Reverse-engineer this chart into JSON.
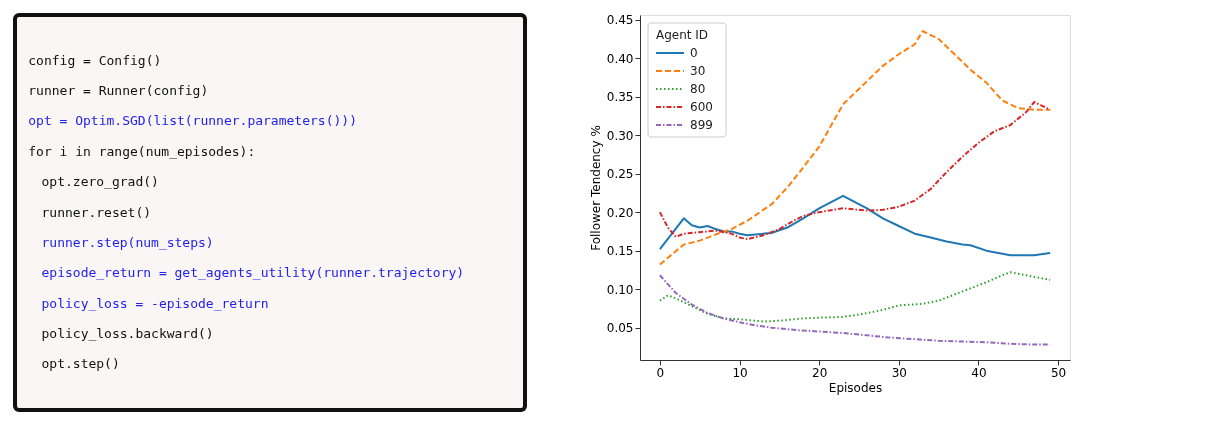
{
  "chart_data": [
    {
      "type": "other",
      "annotations": [
        "config = Config()",
        "runner = Runner(config)",
        "opt = Optim.SGD(list(runner.parameters()))",
        "for i in range(num_episodes):",
        "  opt.zero_grad()",
        "  runner.reset()",
        "  runner.step(num_steps)",
        "  episode_return = get_agents_utility(runner.trajectory)",
        "  policy_loss = -episode_return",
        "  policy_loss.backward()",
        "  opt.step()"
      ],
      "colors": [
        "#111111",
        "#111111",
        "#2222ee",
        "#111111",
        "#111111",
        "#111111",
        "#2222ee",
        "#2222ee",
        "#2222ee",
        "#111111",
        "#111111"
      ]
    },
    {
      "type": "line",
      "xlabel": "Episodes",
      "ylabel": "Follower Tendency %",
      "legend_title": "Agent ID",
      "legend": "top left",
      "grid": false,
      "xlim": [
        -2.5,
        51.5
      ],
      "ylim": [
        0.008,
        0.456
      ],
      "xticks": [
        0,
        10,
        20,
        30,
        40,
        50
      ],
      "yticks": [
        {
          "value": 0.05,
          "label": "0.05"
        },
        {
          "value": 0.1,
          "label": "0.10"
        },
        {
          "value": 0.15,
          "label": "0.15"
        },
        {
          "value": 0.2,
          "label": "0.20"
        },
        {
          "value": 0.25,
          "label": "0.25"
        },
        {
          "value": 0.3,
          "label": "0.30"
        },
        {
          "value": 0.35,
          "label": "0.35"
        },
        {
          "value": 0.4,
          "label": "0.40"
        },
        {
          "value": 0.45,
          "label": "0.45"
        }
      ],
      "series": [
        {
          "name": "0",
          "color": "#1f77b4",
          "line_style": "solid",
          "x": [
            0,
            3,
            4,
            5,
            6,
            7,
            8,
            9,
            10,
            11,
            12,
            14,
            16,
            18,
            20,
            23,
            26,
            28,
            30,
            32,
            34,
            36,
            38,
            39,
            41,
            43,
            44,
            47,
            49
          ],
          "values": [
            0.152,
            0.192,
            0.183,
            0.18,
            0.182,
            0.178,
            0.175,
            0.175,
            0.172,
            0.17,
            0.171,
            0.173,
            0.18,
            0.192,
            0.205,
            0.221,
            0.205,
            0.192,
            0.182,
            0.172,
            0.167,
            0.162,
            0.158,
            0.157,
            0.15,
            0.146,
            0.144,
            0.144,
            0.147
          ]
        },
        {
          "name": "30",
          "color": "#ff7f0e",
          "line_style": "dashed",
          "x": [
            0,
            3,
            5,
            7,
            9,
            11,
            14,
            16,
            18,
            20,
            23,
            25,
            28,
            30,
            32,
            33,
            35,
            37,
            39,
            41,
            43,
            45,
            47,
            49
          ],
          "values": [
            0.132,
            0.158,
            0.163,
            0.171,
            0.178,
            0.189,
            0.21,
            0.232,
            0.258,
            0.285,
            0.34,
            0.36,
            0.39,
            0.405,
            0.418,
            0.435,
            0.425,
            0.405,
            0.385,
            0.368,
            0.345,
            0.335,
            0.333,
            0.333
          ]
        },
        {
          "name": "80",
          "color": "#2ca02c",
          "line_style": "dotted",
          "x": [
            0,
            1,
            2,
            4,
            6,
            8,
            10,
            13,
            15,
            18,
            20,
            23,
            25,
            28,
            30,
            33,
            35,
            37,
            39,
            41,
            43,
            44,
            46,
            49
          ],
          "values": [
            0.085,
            0.092,
            0.088,
            0.078,
            0.068,
            0.062,
            0.061,
            0.058,
            0.059,
            0.062,
            0.063,
            0.064,
            0.067,
            0.073,
            0.079,
            0.081,
            0.085,
            0.093,
            0.101,
            0.109,
            0.118,
            0.122,
            0.118,
            0.112
          ]
        },
        {
          "name": "600",
          "color": "#d62728",
          "line_style": "dashdot",
          "x": [
            0,
            1,
            2,
            3,
            5,
            7,
            9,
            10,
            11,
            13,
            15,
            17,
            18,
            20,
            23,
            26,
            28,
            30,
            32,
            34,
            36,
            38,
            40,
            42,
            44,
            46,
            47,
            48,
            49
          ],
          "values": [
            0.2,
            0.18,
            0.168,
            0.172,
            0.174,
            0.176,
            0.172,
            0.167,
            0.165,
            0.17,
            0.178,
            0.19,
            0.195,
            0.2,
            0.205,
            0.202,
            0.203,
            0.207,
            0.215,
            0.23,
            0.252,
            0.272,
            0.29,
            0.305,
            0.313,
            0.33,
            0.343,
            0.338,
            0.333
          ]
        },
        {
          "name": "899",
          "color": "#9467bd",
          "line_style": "dashdot",
          "x": [
            0,
            2,
            4,
            6,
            8,
            10,
            12,
            14,
            17,
            20,
            23,
            26,
            29,
            32,
            35,
            38,
            41,
            44,
            47,
            49
          ],
          "values": [
            0.118,
            0.095,
            0.08,
            0.069,
            0.062,
            0.057,
            0.053,
            0.05,
            0.047,
            0.045,
            0.043,
            0.04,
            0.037,
            0.035,
            0.033,
            0.032,
            0.031,
            0.029,
            0.028,
            0.028
          ]
        }
      ]
    }
  ]
}
